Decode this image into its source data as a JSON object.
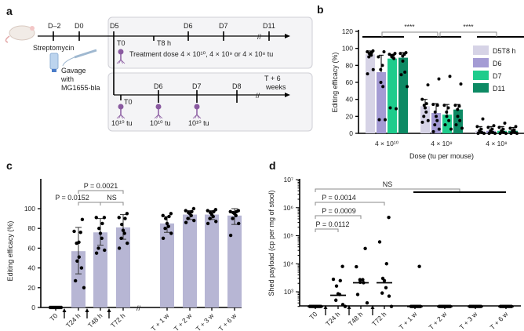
{
  "panels": {
    "a": "a",
    "b": "b",
    "c": "c",
    "d": "d"
  },
  "panel_a": {
    "top_ticks": [
      "D–2",
      "D0",
      "D5",
      "D6",
      "D7",
      "D11"
    ],
    "t8": "T8 h",
    "t0": "T0",
    "streptomycin": "Streptomycin",
    "gavage": [
      "Gavage",
      "with",
      "MG1655-bla"
    ],
    "treatment": "Treatment dose 4 × 10¹⁰, 4 × 10⁹ or 4 × 10⁸ tu",
    "bottom_ticks": [
      "D6",
      "D7",
      "D8"
    ],
    "end_label": [
      "T + 6",
      "weeks"
    ],
    "dose_label": "10¹⁰ tu",
    "phage_color": "#8a5aa0"
  },
  "chart_data": [
    {
      "panel": "b",
      "type": "bar",
      "ylabel": "Editing efficacy (%)",
      "xlabel": "Dose (tu per mouse)",
      "ylim": [
        0,
        120
      ],
      "yticks": [
        "0",
        "20",
        "40",
        "60",
        "80",
        "100",
        "120"
      ],
      "categories": [
        "4 × 10¹⁰",
        "4 × 10⁹",
        "4 × 10⁸"
      ],
      "legend_position": "top-right",
      "significance": [
        "****",
        "****"
      ],
      "series": [
        {
          "name": "D5T8 h",
          "color": "#d6d3e6",
          "values": [
            93,
            32,
            3
          ],
          "err_high": [
            97,
            40,
            8
          ],
          "points": [
            [
              97,
              96,
              95,
              94,
              93,
              92,
              90,
              75,
              70
            ],
            [
              57,
              40,
              35,
              33,
              30,
              25,
              20,
              15,
              13
            ],
            [
              17,
              8,
              5,
              3,
              2,
              1,
              0,
              0
            ]
          ]
        },
        {
          "name": "D6",
          "color": "#a49bd4",
          "values": [
            72,
            24,
            3
          ],
          "err_high": [
            92,
            35,
            8
          ],
          "points": [
            [
              96,
              90,
              80,
              75,
              60,
              55,
              16,
              16
            ],
            [
              64,
              34,
              33,
              25,
              20,
              15,
              10,
              5,
              2
            ],
            [
              9,
              7,
              5,
              3,
              2,
              1,
              0,
              0
            ]
          ]
        },
        {
          "name": "D7",
          "color": "#1ecc8c",
          "values": [
            88,
            22,
            3
          ],
          "err_high": [
            93,
            34,
            8
          ],
          "points": [
            [
              94,
              93,
              92,
              91,
              90,
              88,
              30,
              29
            ],
            [
              67,
              33,
              30,
              25,
              20,
              15,
              10,
              5
            ],
            [
              12,
              7,
              5,
              3,
              2,
              1,
              0,
              0
            ]
          ]
        },
        {
          "name": "D11",
          "color": "#0d8a64",
          "values": [
            89,
            28,
            3
          ],
          "err_high": [
            95,
            34,
            7
          ],
          "points": [
            [
              95,
              94,
              93,
              91,
              85,
              72,
              69,
              55
            ],
            [
              58,
              33,
              32,
              28,
              20,
              15,
              10,
              6
            ],
            [
              8,
              6,
              4,
              3,
              2,
              1,
              0,
              0
            ]
          ]
        }
      ]
    },
    {
      "panel": "c",
      "type": "bar",
      "ylabel": "Editing efficacy (%)",
      "ylim": [
        0,
        120
      ],
      "yticks": [
        "0",
        "20",
        "40",
        "60",
        "80",
        "100"
      ],
      "bar_color": "#b7b6d4",
      "categories": [
        "T0",
        "T24 h",
        "T48 h",
        "T72 h",
        "T + 1 w",
        "T + 2 w",
        "T + 3 w",
        "T + 6 w"
      ],
      "values": [
        0,
        57,
        76,
        81,
        85,
        94,
        94,
        93
      ],
      "err": [
        [
          0,
          0
        ],
        [
          34,
          81
        ],
        [
          63,
          90
        ],
        [
          69,
          94
        ],
        [
          76,
          92
        ],
        [
          89,
          98
        ],
        [
          89,
          98
        ],
        [
          84,
          100
        ]
      ],
      "points": [
        [
          0,
          0,
          0,
          0,
          0,
          0,
          0,
          0
        ],
        [
          89,
          77,
          76,
          65,
          66,
          51,
          47,
          40,
          27,
          20
        ],
        [
          91,
          91,
          85,
          80,
          75,
          70,
          60,
          58,
          55
        ],
        [
          95,
          91,
          90,
          84,
          78,
          75,
          70,
          65,
          60
        ],
        [
          95,
          93,
          92,
          90,
          85,
          82,
          80,
          75,
          70
        ],
        [
          100,
          98,
          97,
          96,
          95,
          93,
          90,
          88,
          86
        ],
        [
          99,
          98,
          97,
          96,
          94,
          92,
          90,
          87,
          85
        ],
        [
          98,
          97,
          97,
          96,
          95,
          93,
          90,
          85,
          73
        ]
      ],
      "comparisons": [
        {
          "label": "P = 0.0152",
          "from": "T24 h",
          "to": "T48 h"
        },
        {
          "label": "NS",
          "from": "T48 h",
          "to": "T72 h"
        },
        {
          "label": "P = 0.0021",
          "from": "T24 h",
          "to": "T72 h"
        }
      ]
    },
    {
      "panel": "d",
      "type": "scatter",
      "ylabel": "Shed payload (cp per mg of stool)",
      "yscale": "log",
      "ylim": [
        300,
        10000000
      ],
      "yticks": [
        "10³",
        "10⁴",
        "10⁵",
        "10⁶",
        "10⁷"
      ],
      "categories": [
        "T0",
        "T24 h",
        "T48 h",
        "T72 h",
        "T + 1 w",
        "T + 2 w",
        "T + 3 w",
        "T + 6 w"
      ],
      "medians": [
        300,
        750,
        2100,
        2100,
        300,
        300,
        300,
        300
      ],
      "points": [
        [
          300,
          300,
          300,
          300,
          300,
          300,
          300,
          300
        ],
        [
          8000,
          2800,
          2500,
          1600,
          850,
          800,
          500,
          350,
          300
        ],
        [
          35000,
          7800,
          2700,
          2700,
          2200,
          2100,
          800,
          400
        ],
        [
          450000,
          60000,
          10000,
          3000,
          2500,
          1400,
          900,
          700,
          300
        ],
        [
          8000,
          300,
          300,
          300,
          300,
          300,
          300,
          300
        ],
        [
          300,
          300,
          300,
          300,
          300,
          300,
          300,
          300
        ],
        [
          300,
          300,
          300,
          300,
          300,
          300,
          300,
          300
        ],
        [
          300,
          300,
          300,
          300,
          300,
          300,
          300,
          300
        ]
      ],
      "comparisons": [
        {
          "label": "P = 0.0112",
          "from": "T0",
          "to": "T24 h"
        },
        {
          "label": "P = 0.0009",
          "from": "T0",
          "to": "T48 h"
        },
        {
          "label": "P = 0.0014",
          "from": "T0",
          "to": "T72 h"
        },
        {
          "label": "NS",
          "from": "T0",
          "to": "T + 1 w"
        }
      ]
    }
  ]
}
